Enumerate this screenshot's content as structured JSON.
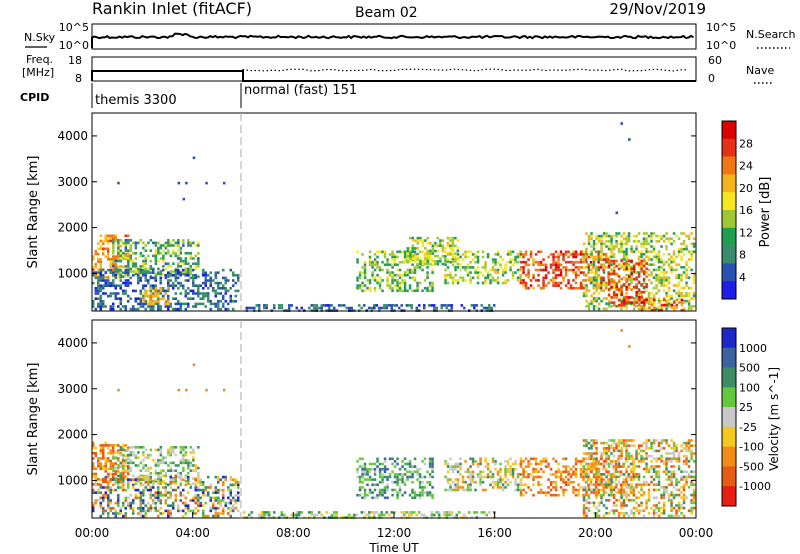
{
  "header": {
    "radar": "Rankin Inlet (fitACF)",
    "beam": "Beam 02",
    "date": "29/Nov/2019"
  },
  "noise_panel": {
    "left_label": "N.Sky",
    "left_ticks": [
      "10^5",
      "10^0"
    ],
    "right_label": "N.Search",
    "right_ticks": [
      "10^5",
      "10^0"
    ]
  },
  "freq_panel": {
    "left_label": "Freq.",
    "left_unit": "[MHz]",
    "left_ticks": [
      "18",
      "8"
    ],
    "right_label": "Nave",
    "right_ticks": [
      "60",
      "0"
    ]
  },
  "cpid": {
    "label": "CPID",
    "segments": [
      {
        "name": "themis 3300",
        "start_h": 0,
        "end_h": 6
      },
      {
        "name": "normal (fast) 151",
        "start_h": 6,
        "end_h": 24
      }
    ]
  },
  "chart_data": [
    {
      "type": "heatmap",
      "name": "power",
      "ylabel": "Slant Range [km]",
      "ylim": [
        180,
        4500
      ],
      "yticks": [
        "1000",
        "2000",
        "3000",
        "4000"
      ],
      "xlim": [
        0,
        24
      ],
      "colorbar": {
        "label": "Power [dB]",
        "range": [
          0,
          32
        ],
        "ticks": [
          "4",
          "8",
          "12",
          "16",
          "20",
          "24",
          "28"
        ],
        "colors": [
          "#1e1ee6",
          "#2850b4",
          "#3a8a6e",
          "#1f9e50",
          "#9ec832",
          "#f5e61e",
          "#f5b41e",
          "#f07814",
          "#e63214",
          "#dc0000"
        ]
      },
      "regions": [
        {
          "t": [
            0.0,
            1.4
          ],
          "r": [
            900,
            1850
          ],
          "v": [
            18,
            26
          ]
        },
        {
          "t": [
            0.8,
            4.2
          ],
          "r": [
            900,
            1750
          ],
          "v": [
            6,
            18
          ]
        },
        {
          "t": [
            0.0,
            5.8
          ],
          "r": [
            200,
            1100
          ],
          "v": [
            2,
            10
          ]
        },
        {
          "t": [
            2.0,
            3.0
          ],
          "r": [
            350,
            700
          ],
          "v": [
            18,
            24
          ]
        },
        {
          "t": [
            6.0,
            16.0
          ],
          "r": [
            200,
            330
          ],
          "v": [
            2,
            10
          ]
        },
        {
          "t": [
            10.5,
            13.5
          ],
          "r": [
            600,
            1500
          ],
          "v": [
            8,
            18
          ]
        },
        {
          "t": [
            12.5,
            14.5
          ],
          "r": [
            1200,
            1800
          ],
          "v": [
            10,
            20
          ]
        },
        {
          "t": [
            14.0,
            17.0
          ],
          "r": [
            800,
            1500
          ],
          "v": [
            10,
            20
          ]
        },
        {
          "t": [
            17.0,
            20.5
          ],
          "r": [
            700,
            1500
          ],
          "v": [
            22,
            30
          ]
        },
        {
          "t": [
            19.5,
            23.9
          ],
          "r": [
            200,
            1900
          ],
          "v": [
            10,
            22
          ]
        },
        {
          "t": [
            20.5,
            22.0
          ],
          "r": [
            300,
            1300
          ],
          "v": [
            24,
            30
          ]
        },
        {
          "t": [
            21.5,
            23.5
          ],
          "r": [
            200,
            450
          ],
          "v": [
            20,
            30
          ]
        }
      ],
      "isolated_points": [
        {
          "t": 1.0,
          "r": 3000
        },
        {
          "t": 3.4,
          "r": 3000
        },
        {
          "t": 3.7,
          "r": 3000
        },
        {
          "t": 3.6,
          "r": 2650
        },
        {
          "t": 4.5,
          "r": 3000
        },
        {
          "t": 5.2,
          "r": 3000
        },
        {
          "t": 4.0,
          "r": 3550
        },
        {
          "t": 21.3,
          "r": 3950
        },
        {
          "t": 21.0,
          "r": 4300
        },
        {
          "t": 20.8,
          "r": 2350
        }
      ]
    },
    {
      "type": "heatmap",
      "name": "velocity",
      "ylabel": "Slant Range [km]",
      "ylim": [
        180,
        4500
      ],
      "yticks": [
        "1000",
        "2000",
        "3000",
        "4000"
      ],
      "xlim": [
        0,
        24
      ],
      "colorbar": {
        "label": "Velocity [m s^-1]",
        "ticks": [
          "1000",
          "500",
          "100",
          "25",
          "-25",
          "-100",
          "-500",
          "-1000"
        ],
        "colors": [
          "#1e28c8",
          "#3c64a0",
          "#3c8c64",
          "#64c83c",
          "#c8c8c8",
          "#f5c81e",
          "#f08c14",
          "#e65a14",
          "#e61e14"
        ]
      },
      "regions": [
        {
          "t": [
            0.0,
            1.4
          ],
          "r": [
            900,
            1850
          ],
          "v": [
            -3,
            -1
          ]
        },
        {
          "t": [
            0.8,
            4.2
          ],
          "r": [
            900,
            1750
          ],
          "v": [
            -1,
            2
          ]
        },
        {
          "t": [
            0.0,
            5.8
          ],
          "r": [
            200,
            1100
          ],
          "v": [
            -3,
            4
          ]
        },
        {
          "t": [
            6.0,
            16.0
          ],
          "r": [
            200,
            330
          ],
          "v": [
            -1,
            2
          ]
        },
        {
          "t": [
            10.5,
            13.5
          ],
          "r": [
            600,
            1500
          ],
          "v": [
            0,
            3
          ]
        },
        {
          "t": [
            14.0,
            17.0
          ],
          "r": [
            800,
            1500
          ],
          "v": [
            -2,
            2
          ]
        },
        {
          "t": [
            17.0,
            21.5
          ],
          "r": [
            700,
            1500
          ],
          "v": [
            -3,
            -1
          ]
        },
        {
          "t": [
            19.5,
            23.9
          ],
          "r": [
            200,
            1900
          ],
          "v": [
            -3,
            2
          ]
        }
      ],
      "isolated_points": [
        {
          "t": 1.0,
          "r": 3000
        },
        {
          "t": 3.4,
          "r": 3000
        },
        {
          "t": 3.7,
          "r": 3000
        },
        {
          "t": 4.0,
          "r": 3550
        },
        {
          "t": 4.5,
          "r": 3000
        },
        {
          "t": 5.2,
          "r": 3000
        },
        {
          "t": 21.3,
          "r": 3950
        },
        {
          "t": 21.0,
          "r": 4300
        }
      ]
    }
  ],
  "time_axis": {
    "ticks": [
      "00:00",
      "04:00",
      "08:00",
      "12:00",
      "16:00",
      "20:00",
      "00:00"
    ],
    "label": "Time UT"
  }
}
